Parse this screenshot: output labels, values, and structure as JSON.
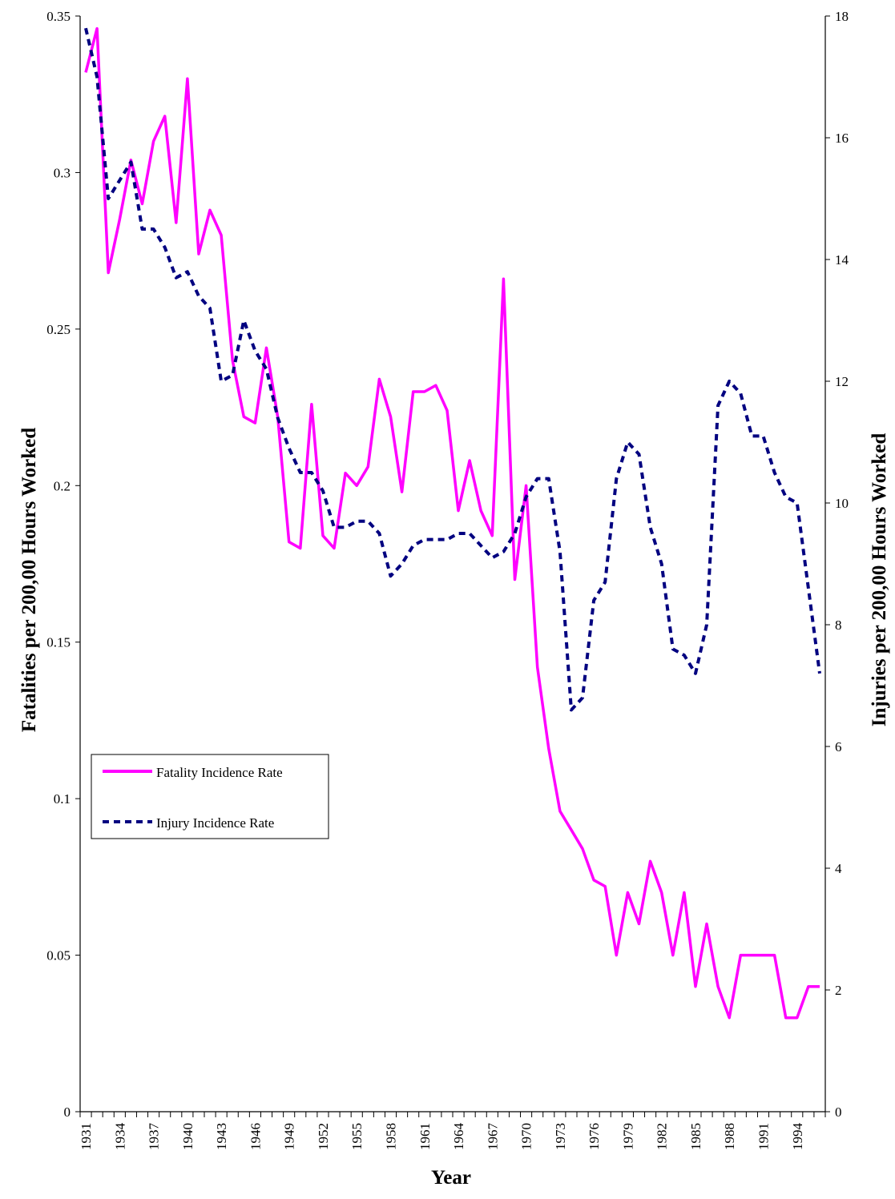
{
  "chart_data": {
    "type": "line",
    "x": [
      1931,
      1932,
      1933,
      1934,
      1935,
      1936,
      1937,
      1938,
      1939,
      1940,
      1941,
      1942,
      1943,
      1944,
      1945,
      1946,
      1947,
      1948,
      1949,
      1950,
      1951,
      1952,
      1953,
      1954,
      1955,
      1956,
      1957,
      1958,
      1959,
      1960,
      1961,
      1962,
      1963,
      1964,
      1965,
      1966,
      1967,
      1968,
      1969,
      1970,
      1971,
      1972,
      1973,
      1974,
      1975,
      1976,
      1977,
      1978,
      1979,
      1980,
      1981,
      1982,
      1983,
      1984,
      1985,
      1986,
      1987,
      1988,
      1989,
      1990,
      1991,
      1992,
      1993,
      1994,
      1995,
      1996
    ],
    "x_tick_labels": [
      "1931",
      "1934",
      "1937",
      "1940",
      "1943",
      "1946",
      "1949",
      "1952",
      "1955",
      "1958",
      "1961",
      "1964",
      "1967",
      "1970",
      "1973",
      "1976",
      "1979",
      "1982",
      "1985",
      "1988",
      "1991",
      "1994"
    ],
    "xlabel": "Year",
    "ylabel_left": "Fatalities per 200,00 Hours Worked",
    "ylabel_right": "Injuries per 200,00 Hours Worked",
    "ylim_left": [
      0,
      0.35
    ],
    "ylim_right": [
      0,
      18
    ],
    "yticks_left": [
      "0",
      "0.05",
      "0.1",
      "0.15",
      "0.2",
      "0.25",
      "0.3",
      "0.35"
    ],
    "yticks_right": [
      "0",
      "2",
      "4",
      "6",
      "8",
      "10",
      "12",
      "14",
      "16",
      "18"
    ],
    "legend_position": "middle-left",
    "series": [
      {
        "name": "Fatality Incidence Rate",
        "axis": "left",
        "color": "#ff00ff",
        "style": "solid",
        "values": [
          0.332,
          0.346,
          0.268,
          0.285,
          0.304,
          0.29,
          0.31,
          0.318,
          0.284,
          0.33,
          0.274,
          0.288,
          0.28,
          0.24,
          0.222,
          0.22,
          0.244,
          0.222,
          0.182,
          0.18,
          0.226,
          0.184,
          0.18,
          0.204,
          0.2,
          0.206,
          0.234,
          0.222,
          0.198,
          0.23,
          0.23,
          0.232,
          0.224,
          0.192,
          0.208,
          0.192,
          0.184,
          0.266,
          0.17,
          0.2,
          0.142,
          0.116,
          0.096,
          0.09,
          0.084,
          0.074,
          0.072,
          0.05,
          0.07,
          0.06,
          0.08,
          0.07,
          0.05,
          0.07,
          0.04,
          0.06,
          0.04,
          0.03,
          0.05,
          0.05,
          0.05,
          0.05,
          0.03,
          0.03,
          0.04,
          0.04
        ]
      },
      {
        "name": "Injury Incidence Rate",
        "axis": "right",
        "color": "#000080",
        "style": "dashed",
        "values": [
          17.8,
          17.0,
          15.0,
          15.3,
          15.6,
          14.5,
          14.5,
          14.2,
          13.7,
          13.8,
          13.4,
          13.2,
          12.0,
          12.1,
          13.0,
          12.5,
          12.2,
          11.4,
          10.9,
          10.5,
          10.5,
          10.2,
          9.6,
          9.6,
          9.7,
          9.7,
          9.5,
          8.8,
          9.0,
          9.3,
          9.4,
          9.4,
          9.4,
          9.5,
          9.5,
          9.3,
          9.1,
          9.2,
          9.5,
          10.1,
          10.4,
          10.4,
          9.2,
          6.6,
          6.8,
          8.4,
          8.7,
          10.4,
          11.0,
          10.8,
          9.6,
          9.0,
          7.6,
          7.5,
          7.2,
          8.0,
          11.6,
          12.0,
          11.8,
          11.1,
          11.1,
          10.5,
          10.1,
          10.0,
          8.6,
          7.2
        ]
      }
    ]
  }
}
